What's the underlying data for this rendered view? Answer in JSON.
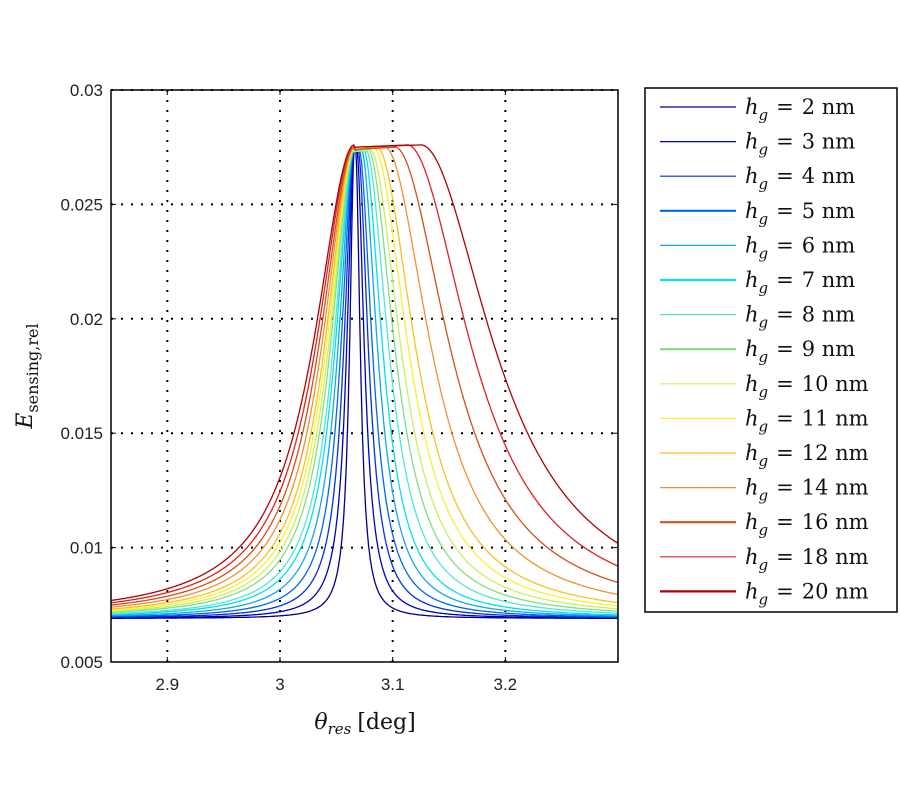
{
  "chart_data": {
    "type": "line",
    "title": "",
    "xlabel": "θ_res [deg]",
    "xlabel_main": "θ",
    "xlabel_sub": "res",
    "xlabel_unit": "[deg]",
    "ylabel": "E_sensing,rel",
    "ylabel_main": "E",
    "ylabel_sub": "sensing,rel",
    "xlim": [
      2.85,
      3.3
    ],
    "ylim": [
      0.005,
      0.03
    ],
    "xticks": [
      2.9,
      3.0,
      3.1,
      3.2
    ],
    "xtick_labels": [
      "2.9",
      "3",
      "3.1",
      "3.2"
    ],
    "yticks": [
      0.005,
      0.01,
      0.015,
      0.02,
      0.025,
      0.03
    ],
    "ytick_labels": [
      "0.005",
      "0.01",
      "0.015",
      "0.02",
      "0.025",
      "0.03"
    ],
    "grid": true,
    "legend_position": "outside-right",
    "curve_model": "asymmetric Lorentzian: rise edge near 3.066 deg, peak at peak_x, baseline ~0.0069",
    "series": [
      {
        "name": "h_g = 2 nm",
        "hg": "2",
        "color": "#00008c",
        "peak_x": 3.067,
        "peak_y": 0.0274,
        "left_hwhm": 0.005,
        "right_hwhm": 0.005,
        "baseline": 0.0069
      },
      {
        "name": "h_g = 3 nm",
        "hg": "3",
        "color": "#0000b8",
        "peak_x": 3.068,
        "peak_y": 0.0274,
        "left_hwhm": 0.008,
        "right_hwhm": 0.008,
        "baseline": 0.0069
      },
      {
        "name": "h_g = 4 nm",
        "hg": "4",
        "color": "#0030e0",
        "peak_x": 3.069,
        "peak_y": 0.0274,
        "left_hwhm": 0.011,
        "right_hwhm": 0.011,
        "baseline": 0.0069
      },
      {
        "name": "h_g = 5 nm",
        "hg": "5",
        "color": "#0068e8",
        "peak_x": 3.07,
        "peak_y": 0.0274,
        "left_hwhm": 0.014,
        "right_hwhm": 0.014,
        "baseline": 0.0069
      },
      {
        "name": "h_g = 6 nm",
        "hg": "6",
        "color": "#10a8e8",
        "peak_x": 3.072,
        "peak_y": 0.0274,
        "left_hwhm": 0.017,
        "right_hwhm": 0.017,
        "baseline": 0.0069
      },
      {
        "name": "h_g = 7 nm",
        "hg": "7",
        "color": "#00e0f0",
        "peak_x": 3.074,
        "peak_y": 0.0274,
        "left_hwhm": 0.02,
        "right_hwhm": 0.02,
        "baseline": 0.0069
      },
      {
        "name": "h_g = 8 nm",
        "hg": "8",
        "color": "#50e8d0",
        "peak_x": 3.076,
        "peak_y": 0.0274,
        "left_hwhm": 0.022,
        "right_hwhm": 0.024,
        "baseline": 0.0069
      },
      {
        "name": "h_g = 9 nm",
        "hg": "9",
        "color": "#80e080",
        "peak_x": 3.078,
        "peak_y": 0.0274,
        "left_hwhm": 0.025,
        "right_hwhm": 0.028,
        "baseline": 0.0069
      },
      {
        "name": "h_g = 10 nm",
        "hg": "10",
        "color": "#c8f060",
        "peak_x": 3.08,
        "peak_y": 0.0274,
        "left_hwhm": 0.027,
        "right_hwhm": 0.032,
        "baseline": 0.0069
      },
      {
        "name": "h_g = 11 nm",
        "hg": "11",
        "color": "#f8f030",
        "peak_x": 3.083,
        "peak_y": 0.0275,
        "left_hwhm": 0.029,
        "right_hwhm": 0.036,
        "baseline": 0.0069
      },
      {
        "name": "h_g = 12 nm",
        "hg": "12",
        "color": "#f8c020",
        "peak_x": 3.086,
        "peak_y": 0.0275,
        "left_hwhm": 0.031,
        "right_hwhm": 0.04,
        "baseline": 0.0069
      },
      {
        "name": "h_g = 14 nm",
        "hg": "14",
        "color": "#f09030",
        "peak_x": 3.093,
        "peak_y": 0.0275,
        "left_hwhm": 0.034,
        "right_hwhm": 0.048,
        "baseline": 0.0069
      },
      {
        "name": "h_g = 16 nm",
        "hg": "16",
        "color": "#d05018",
        "peak_x": 3.102,
        "peak_y": 0.0275,
        "left_hwhm": 0.037,
        "right_hwhm": 0.057,
        "baseline": 0.0069
      },
      {
        "name": "h_g = 18 nm",
        "hg": "18",
        "color": "#e02020",
        "peak_x": 3.113,
        "peak_y": 0.0276,
        "left_hwhm": 0.04,
        "right_hwhm": 0.066,
        "baseline": 0.0069
      },
      {
        "name": "h_g = 20 nm",
        "hg": "20",
        "color": "#b00000",
        "peak_x": 3.125,
        "peak_y": 0.0276,
        "left_hwhm": 0.043,
        "right_hwhm": 0.076,
        "baseline": 0.0069
      }
    ],
    "legend_prefix": "h",
    "legend_prefix_sub": "g",
    "legend_eq": "=",
    "legend_unit": "nm"
  }
}
